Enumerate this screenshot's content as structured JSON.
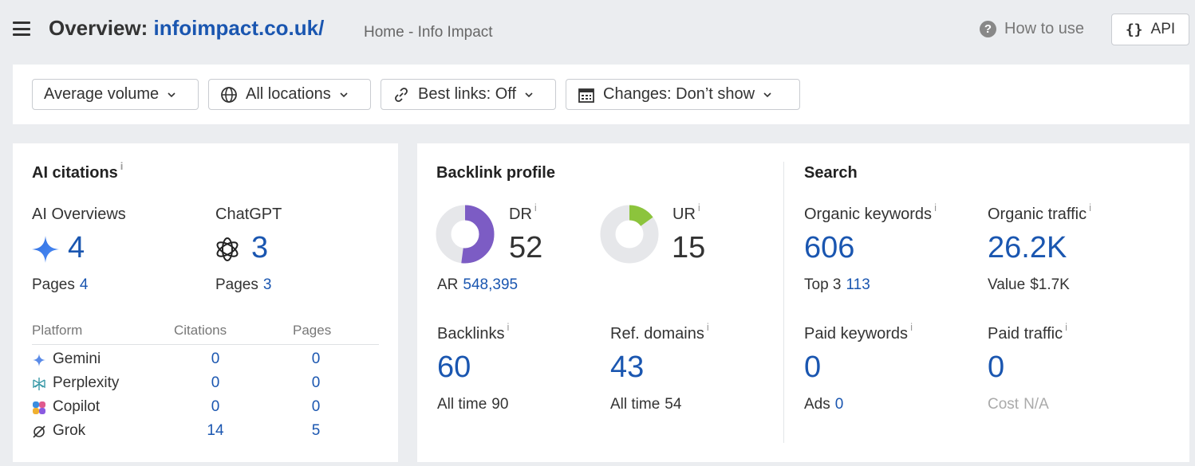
{
  "header": {
    "title_prefix": "Overview:",
    "domain": "infoimpact.co.uk/",
    "subtitle": "Home - Info Impact",
    "how_to_use": "How to use",
    "api_label": "API"
  },
  "filters": [
    {
      "label": "Average volume",
      "icon": "none"
    },
    {
      "label": "All locations",
      "icon": "globe-icon"
    },
    {
      "label": "Best links: Off",
      "icon": "link-icon"
    },
    {
      "label": "Changes: Don’t show",
      "icon": "calendar-icon"
    }
  ],
  "ai_citations": {
    "title": "AI citations",
    "info": "i",
    "ai_overviews": {
      "label": "AI Overviews",
      "value": "4",
      "pages_label": "Pages",
      "pages_value": "4"
    },
    "chatgpt": {
      "label": "ChatGPT",
      "value": "3",
      "pages_label": "Pages",
      "pages_value": "3"
    },
    "table": {
      "headers": [
        "Platform",
        "Citations",
        "Pages"
      ],
      "rows": [
        {
          "platform": "Gemini",
          "citations": "0",
          "pages": "0"
        },
        {
          "platform": "Perplexity",
          "citations": "0",
          "pages": "0"
        },
        {
          "platform": "Copilot",
          "citations": "0",
          "pages": "0"
        },
        {
          "platform": "Grok",
          "citations": "14",
          "pages": "5"
        }
      ]
    }
  },
  "backlink_profile": {
    "title": "Backlink profile",
    "dr": {
      "label": "DR",
      "value": "52",
      "fill_fraction": 0.52,
      "color": "#7c5cc4"
    },
    "ur": {
      "label": "UR",
      "value": "15",
      "fill_fraction": 0.15,
      "color": "#8cc43c"
    },
    "ar": {
      "label": "AR",
      "value": "548,395"
    },
    "backlinks": {
      "label": "Backlinks",
      "value": "60",
      "sub_label": "All time",
      "sub_value": "90"
    },
    "ref_domains": {
      "label": "Ref. domains",
      "value": "43",
      "sub_label": "All time",
      "sub_value": "54"
    }
  },
  "search": {
    "title": "Search",
    "organic_keywords": {
      "label": "Organic keywords",
      "value": "606",
      "sub_label": "Top 3",
      "sub_value": "113"
    },
    "organic_traffic": {
      "label": "Organic traffic",
      "value": "26.2K",
      "sub_label": "Value",
      "sub_value": "$1.7K"
    },
    "paid_keywords": {
      "label": "Paid keywords",
      "value": "0",
      "sub_label": "Ads",
      "sub_value": "0"
    },
    "paid_traffic": {
      "label": "Paid traffic",
      "value": "0",
      "sub_label": "Cost",
      "sub_value": "N/A"
    }
  },
  "colors": {
    "link": "#1a56b0",
    "text": "#333333",
    "muted": "#777777",
    "background": "#ebedf0"
  }
}
